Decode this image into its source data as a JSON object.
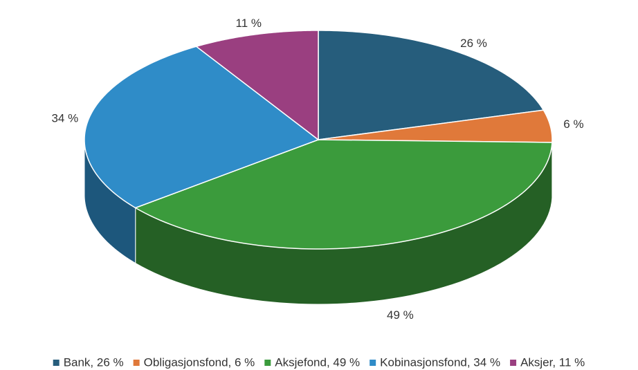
{
  "chart_data": {
    "type": "pie3d",
    "categories": [
      "Bank, 26 %",
      "Obligasjonsfond, 6 %",
      "Aksjefond, 49 %",
      "Kobinasjonsfond, 34 %",
      "Aksjer, 11 %"
    ],
    "values": [
      26,
      6,
      49,
      34,
      11
    ],
    "value_labels": [
      "26 %",
      "6 %",
      "49 %",
      "34 %",
      "11 %"
    ],
    "colors": [
      "#265d7c",
      "#e0793a",
      "#3b9b3c",
      "#2f8cc8",
      "#9a3f80"
    ],
    "legend": "bottom"
  }
}
